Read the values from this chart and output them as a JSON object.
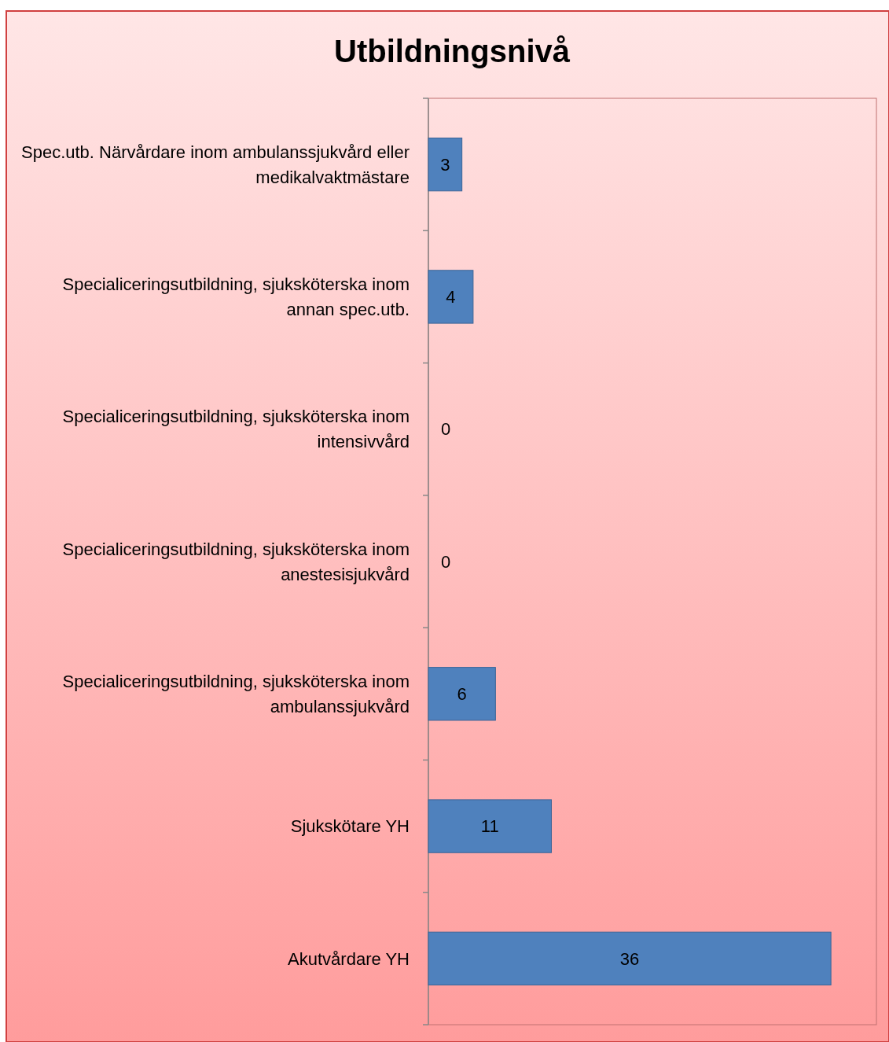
{
  "chart_data": {
    "type": "bar",
    "orientation": "horizontal",
    "title": "Utbildningsnivå",
    "categories": [
      "Spec.utb. Närvårdare inom ambulanssjukvård eller medikalvaktmästare",
      "Specialiceringsutbildning, sjuksköterska inom annan spec.utb.",
      "Specialiceringsutbildning, sjuksköterska inom intensivvård",
      "Specialiceringsutbildning, sjuksköterska inom anestesisjukvård",
      "Specialiceringsutbildning, sjuksköterska inom ambulanssjukvård",
      "Sjukskötare YH",
      "Akutvårdare YH"
    ],
    "values": [
      3,
      4,
      0,
      0,
      6,
      11,
      36
    ],
    "color": "#4f81bd",
    "data_labels": true
  }
}
